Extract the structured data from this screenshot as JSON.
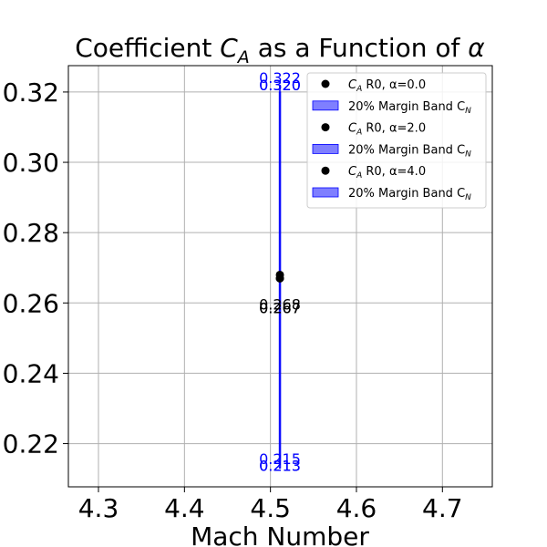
{
  "chart_data": {
    "type": "scatter",
    "title_parts": [
      "Coefficient ",
      "C",
      "A",
      " as a Function of ",
      "α"
    ],
    "xlabel": "Mach Number",
    "ylabel": "",
    "xlim": [
      4.265,
      4.758
    ],
    "ylim": [
      0.2077,
      0.3275
    ],
    "xticks": [
      {
        "value": 4.3,
        "label": "4.3"
      },
      {
        "value": 4.4,
        "label": "4.4"
      },
      {
        "value": 4.5,
        "label": "4.5"
      },
      {
        "value": 4.6,
        "label": "4.6"
      },
      {
        "value": 4.7,
        "label": "4.7"
      }
    ],
    "yticks": [
      {
        "value": 0.22,
        "label": "0.22"
      },
      {
        "value": 0.24,
        "label": "0.24"
      },
      {
        "value": 0.26,
        "label": "0.26"
      },
      {
        "value": 0.28,
        "label": "0.28"
      },
      {
        "value": 0.3,
        "label": "0.30"
      },
      {
        "value": 0.32,
        "label": "0.32"
      }
    ],
    "grid": true,
    "legend_position": "top-right",
    "series": [
      {
        "name_parts": [
          "C",
          "A",
          " R0, α=0.0"
        ],
        "type": "scatter",
        "color": "#000000",
        "x": 4.511,
        "y": 0.268,
        "label": "0.268"
      },
      {
        "name_parts": [
          "20% Margin Band C",
          "N"
        ],
        "type": "band",
        "color": "#0000ff",
        "x": 4.511,
        "y_low": 0.215,
        "y_high": 0.322,
        "label_low": "0.215",
        "label_high": "0.322"
      },
      {
        "name_parts": [
          "C",
          "A",
          " R0, α=2.0"
        ],
        "type": "scatter",
        "color": "#000000",
        "x": 4.511,
        "y": 0.267,
        "label": "0.267"
      },
      {
        "name_parts": [
          "20% Margin Band C",
          "N"
        ],
        "type": "band",
        "color": "#0000ff",
        "x": 4.511,
        "y_low": 0.213,
        "y_high": 0.32,
        "label_low": "0.213",
        "label_high": "0.320"
      },
      {
        "name_parts": [
          "C",
          "A",
          " R0, α=4.0"
        ],
        "type": "scatter",
        "color": "#000000",
        "x": 4.511,
        "y": 0.267,
        "label": "0.267"
      },
      {
        "name_parts": [
          "20% Margin Band C",
          "N"
        ],
        "type": "band",
        "color": "#0000ff",
        "x": 4.511,
        "y_low": 0.213,
        "y_high": 0.32,
        "label_low": "0.213",
        "label_high": "0.320"
      }
    ]
  }
}
